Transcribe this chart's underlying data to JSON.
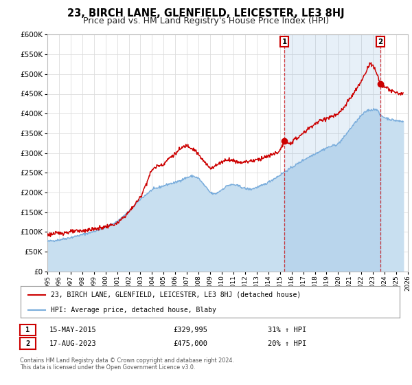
{
  "title": "23, BIRCH LANE, GLENFIELD, LEICESTER, LE3 8HJ",
  "subtitle": "Price paid vs. HM Land Registry's House Price Index (HPI)",
  "title_fontsize": 10.5,
  "subtitle_fontsize": 9,
  "red_line_label": "23, BIRCH LANE, GLENFIELD, LEICESTER, LE3 8HJ (detached house)",
  "blue_line_label": "HPI: Average price, detached house, Blaby",
  "marker1_date_x": 2015.374,
  "marker1_price": 329995,
  "marker1_text": "15-MAY-2015",
  "marker1_value_text": "£329,995",
  "marker1_pct_text": "31% ↑ HPI",
  "marker2_date_x": 2023.624,
  "marker2_price": 475000,
  "marker2_text": "17-AUG-2023",
  "marker2_value_text": "£475,000",
  "marker2_pct_text": "20% ↑ HPI",
  "xmin": 1995.0,
  "xmax": 2026.0,
  "ymin": 0,
  "ymax": 600000,
  "yticks": [
    0,
    50000,
    100000,
    150000,
    200000,
    250000,
    300000,
    350000,
    400000,
    450000,
    500000,
    550000,
    600000
  ],
  "fig_bg": "#ffffff",
  "plot_bg": "#ffffff",
  "red_color": "#cc0000",
  "blue_color": "#7aaddc",
  "blue_fill_color": "#c8dff0",
  "grid_color": "#dddddd",
  "footer_text": "Contains HM Land Registry data © Crown copyright and database right 2024.\nThis data is licensed under the Open Government Licence v3.0."
}
